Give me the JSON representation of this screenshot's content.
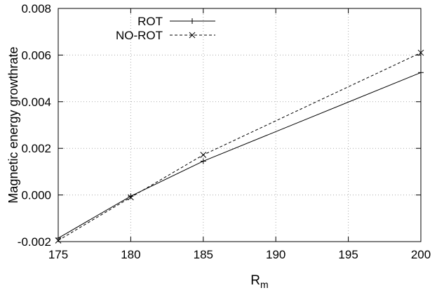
{
  "chart_data": {
    "type": "line",
    "title": "",
    "xlabel": "R",
    "xlabel_subscript": "m",
    "ylabel": "Magnetic energy growthrate",
    "xlim": [
      175,
      200
    ],
    "ylim": [
      -0.002,
      0.008
    ],
    "xticks": [
      175,
      180,
      185,
      190,
      195,
      200
    ],
    "xtick_labels": [
      "175",
      "180",
      "185",
      "190",
      "195",
      "200"
    ],
    "yticks": [
      -0.002,
      0.0,
      0.002,
      0.004,
      0.006,
      0.008
    ],
    "ytick_labels": [
      "-0.002",
      "0.000",
      "0.002",
      "0.004",
      "0.006",
      "0.008"
    ],
    "x": [
      175,
      180,
      185,
      200
    ],
    "series": [
      {
        "name": "ROT",
        "values": [
          -0.00185,
          -5e-05,
          0.00145,
          0.00525
        ],
        "line": "solid",
        "marker": "+"
      },
      {
        "name": "NO-ROT",
        "values": [
          -0.00195,
          -0.0001,
          0.00172,
          0.0061
        ],
        "line": "dashed",
        "marker": "x"
      }
    ],
    "grid": true,
    "legend_position": "top-left"
  }
}
